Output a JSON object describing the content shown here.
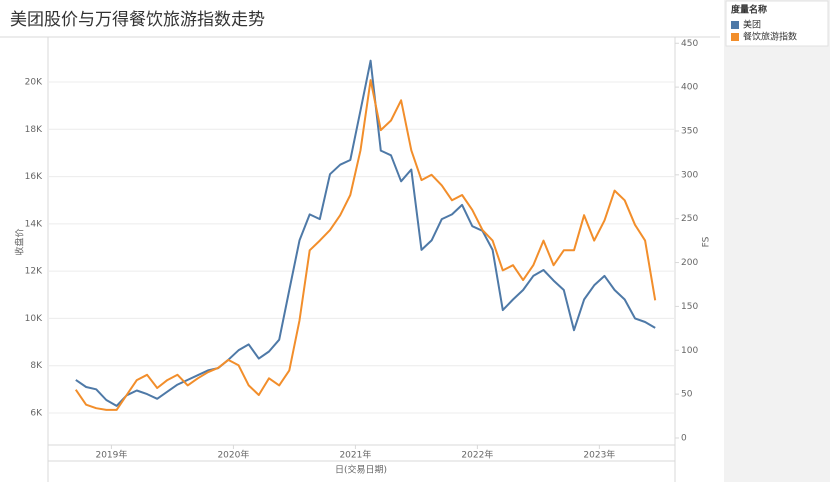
{
  "chart_data": {
    "type": "line",
    "title": "美团股价与万得餐饮旅游指数走势",
    "x_label": "日(交易日期)",
    "y_label": "收盘价",
    "y2_label": "FS",
    "legend_title": "度量名称",
    "legend": "right",
    "grid": true,
    "xlim": [
      2018.48,
      2023.62
    ],
    "xticks": [
      {
        "value": 2019,
        "label": "2019年"
      },
      {
        "value": 2020,
        "label": "2020年"
      },
      {
        "value": 2021,
        "label": "2021年"
      },
      {
        "value": 2022,
        "label": "2022年"
      },
      {
        "value": 2023,
        "label": "2023年"
      }
    ],
    "ylim": [
      4646,
      21861
    ],
    "yticks": [
      {
        "value": 6000,
        "label": "6K"
      },
      {
        "value": 8000,
        "label": "8K"
      },
      {
        "value": 10000,
        "label": "10K"
      },
      {
        "value": 12000,
        "label": "12K"
      },
      {
        "value": 14000,
        "label": "14K"
      },
      {
        "value": 16000,
        "label": "16K"
      },
      {
        "value": 18000,
        "label": "18K"
      },
      {
        "value": 20000,
        "label": "20K"
      }
    ],
    "y2lim": [
      -8,
      456
    ],
    "y2ticks": [
      0,
      50,
      100,
      150,
      200,
      250,
      300,
      350,
      400,
      450
    ],
    "x": [
      2018.708,
      2018.792,
      2018.875,
      2018.958,
      2019.042,
      2019.125,
      2019.208,
      2019.292,
      2019.375,
      2019.458,
      2019.542,
      2019.625,
      2019.708,
      2019.792,
      2019.875,
      2019.958,
      2020.042,
      2020.125,
      2020.208,
      2020.292,
      2020.375,
      2020.458,
      2020.542,
      2020.625,
      2020.708,
      2020.792,
      2020.875,
      2020.958,
      2021.042,
      2021.125,
      2021.208,
      2021.292,
      2021.375,
      2021.458,
      2021.542,
      2021.625,
      2021.708,
      2021.792,
      2021.875,
      2021.958,
      2022.042,
      2022.125,
      2022.208,
      2022.292,
      2022.375,
      2022.458,
      2022.542,
      2022.625,
      2022.708,
      2022.792,
      2022.875,
      2022.958,
      2023.042,
      2023.125,
      2023.208,
      2023.292,
      2023.375,
      2023.458
    ],
    "series": [
      {
        "name": "美团",
        "color": "#4e79a7",
        "axis": "y",
        "values": [
          7400,
          7100,
          7000,
          6550,
          6300,
          6750,
          6950,
          6800,
          6600,
          6900,
          7200,
          7400,
          7600,
          7800,
          7900,
          8250,
          8650,
          8900,
          8300,
          8600,
          9100,
          11200,
          13300,
          14400,
          14200,
          16100,
          16500,
          16700,
          18800,
          20900,
          17100,
          16900,
          15800,
          16300,
          12900,
          13300,
          14200,
          14400,
          14800,
          13900,
          13700,
          12900,
          10350,
          10800,
          11200,
          11800,
          12050,
          11600,
          11200,
          9500,
          10800,
          11400,
          11800,
          11200,
          10800,
          10000,
          9850,
          9600
        ]
      },
      {
        "name": "餐饮旅游指数",
        "color": "#f28e2b",
        "axis": "y2",
        "values": [
          55,
          38,
          34,
          32,
          32,
          49,
          66,
          72,
          57,
          66,
          72,
          60,
          68,
          75,
          80,
          89,
          83,
          60,
          49,
          68,
          60,
          77,
          134,
          214,
          225,
          237,
          254,
          277,
          328,
          408,
          351,
          362,
          385,
          328,
          294,
          300,
          288,
          271,
          277,
          260,
          237,
          225,
          191,
          197,
          180,
          197,
          225,
          197,
          214,
          214,
          254,
          225,
          248,
          282,
          271,
          243,
          225,
          157
        ]
      }
    ]
  }
}
